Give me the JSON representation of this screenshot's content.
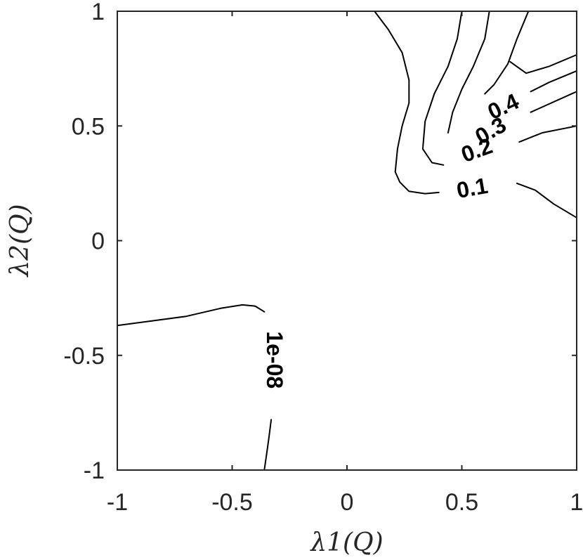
{
  "chart_data": {
    "type": "contour",
    "xlabel": "λ1(Q)",
    "ylabel": "λ2(Q)",
    "xlim": [
      -1,
      1
    ],
    "ylim": [
      -1,
      1
    ],
    "xticks": [
      -1,
      -0.5,
      0,
      0.5,
      1
    ],
    "yticks": [
      -1,
      -0.5,
      0,
      0.5,
      1
    ],
    "xtick_labels": [
      "-1",
      "-0.5",
      "0",
      "0.5",
      "1"
    ],
    "ytick_labels": [
      "-1",
      "-0.5",
      "0",
      "0.5",
      "1"
    ],
    "grid": false,
    "levels": [
      {
        "label": "1e-08",
        "segments": [
          [
            [
              -1.0,
              -0.37
            ],
            [
              -0.85,
              -0.35
            ],
            [
              -0.7,
              -0.33
            ],
            [
              -0.55,
              -0.295
            ],
            [
              -0.455,
              -0.28
            ],
            [
              -0.4,
              -0.285
            ],
            [
              -0.36,
              -0.31
            ]
          ],
          [
            [
              -0.33,
              -0.78
            ],
            [
              -0.34,
              -0.86
            ],
            [
              -0.35,
              -0.93
            ],
            [
              -0.36,
              -1.0
            ]
          ]
        ],
        "label_pos": [
          -0.315,
          -0.52
        ],
        "label_angle": 90
      },
      {
        "label": "0.1",
        "segments": [
          [
            [
              0.12,
              1.0
            ],
            [
              0.18,
              0.92
            ],
            [
              0.24,
              0.82
            ],
            [
              0.27,
              0.7
            ],
            [
              0.27,
              0.6
            ],
            [
              0.24,
              0.5
            ],
            [
              0.22,
              0.4
            ],
            [
              0.21,
              0.3
            ],
            [
              0.23,
              0.255
            ],
            [
              0.27,
              0.215
            ],
            [
              0.34,
              0.205
            ],
            [
              0.4,
              0.21
            ]
          ],
          [
            [
              0.74,
              0.25
            ],
            [
              0.82,
              0.22
            ],
            [
              0.9,
              0.16
            ],
            [
              1.0,
              0.1
            ]
          ]
        ],
        "label_pos": [
          0.545,
          0.23
        ],
        "label_angle": -10
      },
      {
        "label": "0.2",
        "segments": [
          [
            [
              0.5,
              1.0
            ],
            [
              0.48,
              0.88
            ],
            [
              0.44,
              0.76
            ],
            [
              0.38,
              0.64
            ],
            [
              0.34,
              0.52
            ],
            [
              0.33,
              0.4
            ],
            [
              0.37,
              0.34
            ],
            [
              0.42,
              0.33
            ]
          ],
          [
            [
              0.75,
              0.43
            ],
            [
              0.85,
              0.47
            ],
            [
              1.0,
              0.5
            ]
          ]
        ],
        "label_pos": [
          0.565,
          0.395
        ],
        "label_angle": -20
      },
      {
        "label": "0.3",
        "segments": [
          [
            [
              0.62,
              1.0
            ],
            [
              0.6,
              0.88
            ],
            [
              0.55,
              0.76
            ],
            [
              0.5,
              0.66
            ],
            [
              0.46,
              0.56
            ],
            [
              0.44,
              0.47
            ]
          ],
          [
            [
              0.8,
              0.56
            ],
            [
              1.0,
              0.65
            ]
          ]
        ],
        "label_pos": [
          0.625,
          0.48
        ],
        "label_angle": -30
      },
      {
        "label": "0.4",
        "segments": [
          [
            [
              0.79,
              1.0
            ],
            [
              0.74,
              0.88
            ],
            [
              0.7,
              0.77
            ],
            [
              0.64,
              0.68
            ],
            [
              0.6,
              0.64
            ]
          ],
          [
            [
              0.8,
              0.65
            ],
            [
              0.88,
              0.69
            ],
            [
              1.0,
              0.74
            ]
          ],
          [
            [
              0.71,
              0.78
            ],
            [
              0.78,
              0.73
            ],
            [
              0.88,
              0.76
            ],
            [
              1.0,
              0.81
            ]
          ]
        ],
        "label_pos": [
          0.68,
          0.585
        ],
        "label_angle": -25
      }
    ]
  }
}
